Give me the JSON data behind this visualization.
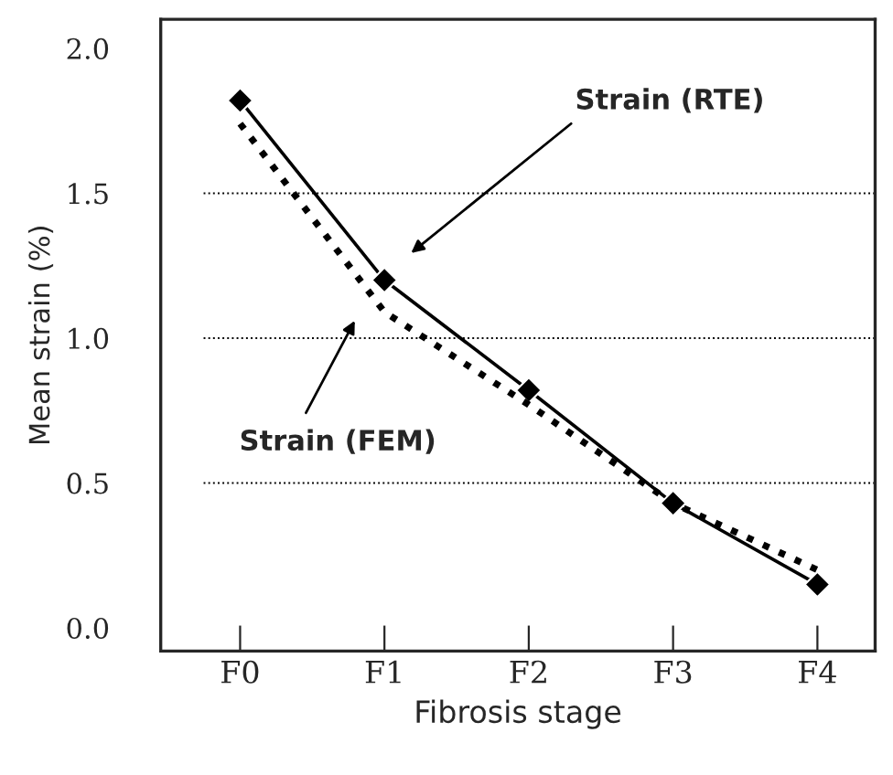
{
  "chart_data": {
    "type": "line",
    "xlabel": "Fibrosis stage",
    "ylabel": "Mean strain (%)",
    "categories": [
      "F0",
      "F1",
      "F2",
      "F3",
      "F4"
    ],
    "series": [
      {
        "color": "#000000",
        "values": [
          1.82,
          1.2,
          0.82,
          0.43,
          0.15
        ],
        "marker": "diamond",
        "line_style": "solid"
      },
      {
        "color": "#000000",
        "values": [
          1.74,
          1.09,
          0.77,
          0.43,
          0.2
        ],
        "marker": "none",
        "line_style": "dotted"
      }
    ],
    "ylim": [
      -0.08,
      2.1
    ],
    "yticks": [
      {
        "value": 0,
        "label": "0.0"
      },
      0.5,
      {
        "value": 1,
        "label": "1.0"
      },
      1.5,
      {
        "value": 2,
        "label": "2.0"
      }
    ],
    "ref_lines": [
      {
        "axis": "y",
        "value": 0.5,
        "line_style": "dotted"
      },
      {
        "axis": "y",
        "value": 1.0,
        "line_style": "dotted"
      },
      {
        "axis": "y",
        "value": 1.5,
        "line_style": "dotted"
      }
    ],
    "annotations": [
      "Strain (RTE)",
      "Strain (FEM)"
    ],
    "legend": false,
    "grid": false
  }
}
